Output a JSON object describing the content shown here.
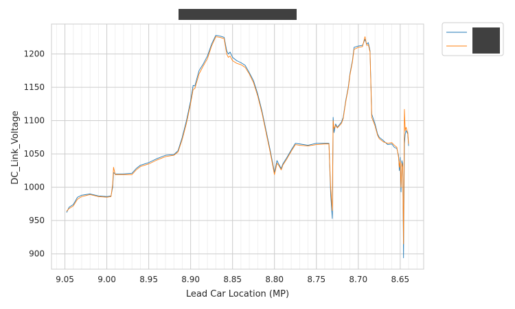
{
  "chart_data": {
    "type": "line",
    "title": "",
    "title_redacted": true,
    "xlabel": "Lead Car Location (MP)",
    "ylabel": "DC_Link_Voltage",
    "x_reversed": true,
    "xlim": [
      9.066,
      8.622
    ],
    "ylim": [
      877,
      1245
    ],
    "xticks": [
      {
        "value": 9.05,
        "label": "9.05"
      },
      {
        "value": 9.0,
        "label": "9.00"
      },
      {
        "value": 8.95,
        "label": "8.95"
      },
      {
        "value": 8.9,
        "label": "8.90"
      },
      {
        "value": 8.85,
        "label": "8.85"
      },
      {
        "value": 8.8,
        "label": "8.80"
      },
      {
        "value": 8.75,
        "label": "8.75"
      },
      {
        "value": 8.7,
        "label": "8.70"
      },
      {
        "value": 8.65,
        "label": "8.65"
      }
    ],
    "yticks": [
      {
        "value": 900,
        "label": "900"
      },
      {
        "value": 950,
        "label": "950"
      },
      {
        "value": 1000,
        "label": "1000"
      },
      {
        "value": 1050,
        "label": "1050"
      },
      {
        "value": 1100,
        "label": "1100"
      },
      {
        "value": 1150,
        "label": "1150"
      },
      {
        "value": 1200,
        "label": "1200"
      }
    ],
    "minor_x_step": 0.01,
    "grid": true,
    "legend_placement": "outside-right-top",
    "legend_labels_redacted": true,
    "series": [
      {
        "color": "#1f77b4",
        "points": [
          [
            9.048,
            962
          ],
          [
            9.045,
            970
          ],
          [
            9.04,
            974
          ],
          [
            9.035,
            985
          ],
          [
            9.03,
            988
          ],
          [
            9.02,
            990
          ],
          [
            9.01,
            987
          ],
          [
            9.0,
            986
          ],
          [
            8.995,
            987
          ],
          [
            8.993,
            1000
          ],
          [
            8.992,
            1022
          ],
          [
            8.99,
            1020
          ],
          [
            8.98,
            1020
          ],
          [
            8.97,
            1021
          ],
          [
            8.965,
            1028
          ],
          [
            8.96,
            1033
          ],
          [
            8.95,
            1037
          ],
          [
            8.94,
            1043
          ],
          [
            8.93,
            1048
          ],
          [
            8.92,
            1049
          ],
          [
            8.915,
            1055
          ],
          [
            8.91,
            1075
          ],
          [
            8.905,
            1100
          ],
          [
            8.9,
            1130
          ],
          [
            8.897,
            1153
          ],
          [
            8.895,
            1152
          ],
          [
            8.89,
            1175
          ],
          [
            8.885,
            1185
          ],
          [
            8.88,
            1197
          ],
          [
            8.875,
            1215
          ],
          [
            8.87,
            1228
          ],
          [
            8.865,
            1227
          ],
          [
            8.86,
            1225
          ],
          [
            8.857,
            1205
          ],
          [
            8.855,
            1200
          ],
          [
            8.853,
            1203
          ],
          [
            8.85,
            1195
          ],
          [
            8.845,
            1190
          ],
          [
            8.84,
            1187
          ],
          [
            8.835,
            1183
          ],
          [
            8.83,
            1172
          ],
          [
            8.825,
            1160
          ],
          [
            8.82,
            1140
          ],
          [
            8.815,
            1115
          ],
          [
            8.81,
            1085
          ],
          [
            8.805,
            1055
          ],
          [
            8.8,
            1022
          ],
          [
            8.797,
            1040
          ],
          [
            8.795,
            1035
          ],
          [
            8.792,
            1028
          ],
          [
            8.79,
            1035
          ],
          [
            8.785,
            1045
          ],
          [
            8.78,
            1056
          ],
          [
            8.775,
            1066
          ],
          [
            8.77,
            1065
          ],
          [
            8.76,
            1063
          ],
          [
            8.75,
            1066
          ],
          [
            8.74,
            1066
          ],
          [
            8.735,
            1066
          ],
          [
            8.733,
            990
          ],
          [
            8.731,
            953
          ],
          [
            8.73,
            1105
          ],
          [
            8.729,
            1082
          ],
          [
            8.727,
            1095
          ],
          [
            8.725,
            1090
          ],
          [
            8.72,
            1098
          ],
          [
            8.718,
            1105
          ],
          [
            8.715,
            1130
          ],
          [
            8.712,
            1150
          ],
          [
            8.71,
            1170
          ],
          [
            8.707,
            1190
          ],
          [
            8.705,
            1210
          ],
          [
            8.7,
            1212
          ],
          [
            8.695,
            1213
          ],
          [
            8.692,
            1222
          ],
          [
            8.69,
            1215
          ],
          [
            8.688,
            1217
          ],
          [
            8.686,
            1205
          ],
          [
            8.684,
            1110
          ],
          [
            8.68,
            1095
          ],
          [
            8.677,
            1080
          ],
          [
            8.675,
            1075
          ],
          [
            8.67,
            1070
          ],
          [
            8.665,
            1064
          ],
          [
            8.66,
            1065
          ],
          [
            8.657,
            1060
          ],
          [
            8.654,
            1058
          ],
          [
            8.652,
            1048
          ],
          [
            8.651,
            1025
          ],
          [
            8.65,
            1045
          ],
          [
            8.649,
            993
          ],
          [
            8.648,
            1040
          ],
          [
            8.647,
            1035
          ],
          [
            8.646,
            894
          ],
          [
            8.645,
            1065
          ],
          [
            8.644,
            1080
          ],
          [
            8.643,
            1085
          ],
          [
            8.641,
            1080
          ],
          [
            8.64,
            1062
          ]
        ]
      },
      {
        "color": "#ff7f0e",
        "points": [
          [
            9.048,
            964
          ],
          [
            9.045,
            968
          ],
          [
            9.04,
            972
          ],
          [
            9.035,
            982
          ],
          [
            9.03,
            986
          ],
          [
            9.02,
            989
          ],
          [
            9.01,
            986
          ],
          [
            9.0,
            985
          ],
          [
            8.995,
            986
          ],
          [
            8.993,
            1005
          ],
          [
            8.992,
            1030
          ],
          [
            8.99,
            1019
          ],
          [
            8.98,
            1019
          ],
          [
            8.97,
            1019
          ],
          [
            8.965,
            1026
          ],
          [
            8.96,
            1031
          ],
          [
            8.95,
            1035
          ],
          [
            8.94,
            1041
          ],
          [
            8.93,
            1046
          ],
          [
            8.92,
            1048
          ],
          [
            8.915,
            1053
          ],
          [
            8.91,
            1072
          ],
          [
            8.905,
            1096
          ],
          [
            8.9,
            1126
          ],
          [
            8.897,
            1147
          ],
          [
            8.895,
            1148
          ],
          [
            8.89,
            1170
          ],
          [
            8.885,
            1182
          ],
          [
            8.88,
            1193
          ],
          [
            8.875,
            1212
          ],
          [
            8.87,
            1226
          ],
          [
            8.865,
            1225
          ],
          [
            8.86,
            1223
          ],
          [
            8.857,
            1200
          ],
          [
            8.855,
            1195
          ],
          [
            8.853,
            1197
          ],
          [
            8.85,
            1190
          ],
          [
            8.845,
            1186
          ],
          [
            8.84,
            1184
          ],
          [
            8.835,
            1180
          ],
          [
            8.83,
            1170
          ],
          [
            8.825,
            1157
          ],
          [
            8.82,
            1137
          ],
          [
            8.815,
            1112
          ],
          [
            8.81,
            1082
          ],
          [
            8.805,
            1052
          ],
          [
            8.8,
            1019
          ],
          [
            8.797,
            1036
          ],
          [
            8.795,
            1033
          ],
          [
            8.792,
            1026
          ],
          [
            8.79,
            1033
          ],
          [
            8.785,
            1043
          ],
          [
            8.78,
            1054
          ],
          [
            8.775,
            1064
          ],
          [
            8.77,
            1063
          ],
          [
            8.76,
            1062
          ],
          [
            8.75,
            1064
          ],
          [
            8.74,
            1065
          ],
          [
            8.735,
            1065
          ],
          [
            8.733,
            1000
          ],
          [
            8.731,
            965
          ],
          [
            8.73,
            1100
          ],
          [
            8.729,
            1088
          ],
          [
            8.727,
            1093
          ],
          [
            8.725,
            1089
          ],
          [
            8.72,
            1096
          ],
          [
            8.718,
            1103
          ],
          [
            8.715,
            1128
          ],
          [
            8.712,
            1148
          ],
          [
            8.71,
            1168
          ],
          [
            8.707,
            1188
          ],
          [
            8.705,
            1207
          ],
          [
            8.7,
            1210
          ],
          [
            8.695,
            1211
          ],
          [
            8.692,
            1226
          ],
          [
            8.69,
            1213
          ],
          [
            8.688,
            1214
          ],
          [
            8.686,
            1203
          ],
          [
            8.684,
            1105
          ],
          [
            8.68,
            1092
          ],
          [
            8.677,
            1078
          ],
          [
            8.675,
            1073
          ],
          [
            8.67,
            1068
          ],
          [
            8.665,
            1066
          ],
          [
            8.66,
            1067
          ],
          [
            8.657,
            1063
          ],
          [
            8.654,
            1060
          ],
          [
            8.652,
            1045
          ],
          [
            8.651,
            1030
          ],
          [
            8.65,
            1040
          ],
          [
            8.649,
            1000
          ],
          [
            8.648,
            1036
          ],
          [
            8.647,
            1030
          ],
          [
            8.646,
            915
          ],
          [
            8.645,
            1117
          ],
          [
            8.644,
            1085
          ],
          [
            8.643,
            1090
          ],
          [
            8.641,
            1082
          ],
          [
            8.64,
            1065
          ]
        ]
      }
    ]
  }
}
